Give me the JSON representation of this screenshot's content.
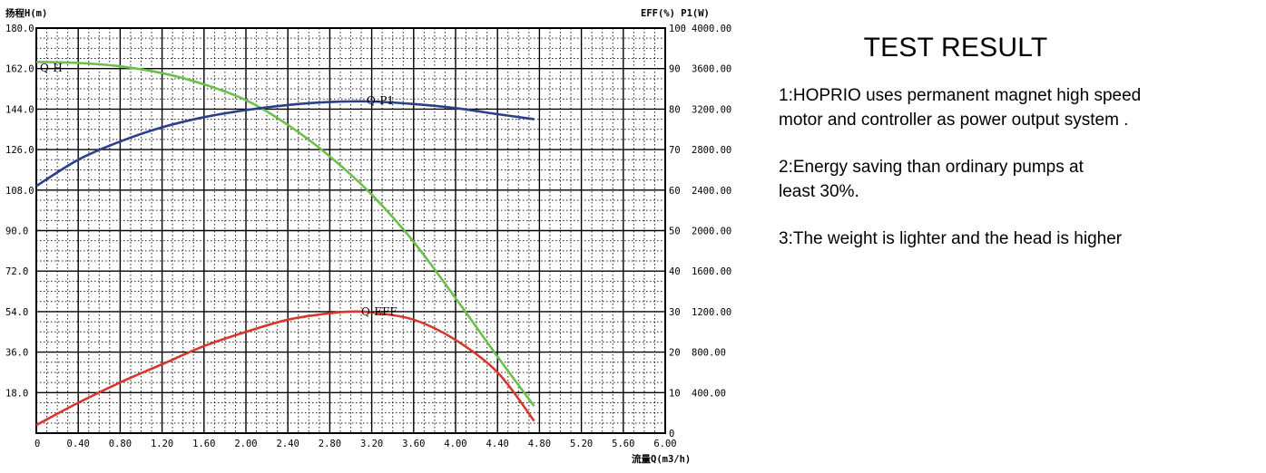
{
  "chart_data": {
    "type": "line",
    "xlabel": "流量Q(m3/h)",
    "ylabel_left": "扬程H(m)",
    "ylabel_right": "EFF(%) P1(W)",
    "xlim": [
      0,
      6.0
    ],
    "ylim_left": [
      0,
      180
    ],
    "ylim_eff": [
      0,
      100
    ],
    "ylim_power": [
      0,
      4000
    ],
    "x_ticks": [
      "0",
      "0.40",
      "0.80",
      "1.20",
      "1.60",
      "2.00",
      "2.40",
      "2.80",
      "3.20",
      "3.60",
      "4.00",
      "4.40",
      "4.80",
      "5.20",
      "5.60",
      "6.00"
    ],
    "x_tick_values": [
      0,
      0.4,
      0.8,
      1.2,
      1.6,
      2.0,
      2.4,
      2.8,
      3.2,
      3.6,
      4.0,
      4.4,
      4.8,
      5.2,
      5.6,
      6.0
    ],
    "y_left_ticks": [
      "180.0",
      "162.0",
      "144.0",
      "126.0",
      "108.0",
      "90.0",
      "72.0",
      "54.0",
      "36.0",
      "18.0"
    ],
    "y_left_tick_values": [
      180,
      162,
      144,
      126,
      108,
      90,
      72,
      54,
      36,
      18
    ],
    "y_eff_ticks": [
      "100",
      "90",
      "80",
      "70",
      "60",
      "50",
      "40",
      "30",
      "20",
      "10",
      "0"
    ],
    "y_eff_tick_values": [
      100,
      90,
      80,
      70,
      60,
      50,
      40,
      30,
      20,
      10,
      0
    ],
    "y_power_ticks": [
      "4000.00",
      "3600.00",
      "3200.00",
      "2800.00",
      "2400.00",
      "2000.00",
      "1600.00",
      "1200.00",
      "800.00",
      "400.00"
    ],
    "y_power_tick_values": [
      4000,
      3600,
      3200,
      2800,
      2400,
      2000,
      1600,
      1200,
      800,
      400
    ],
    "grid": true,
    "series": [
      {
        "name": "Q-H",
        "color": "#6ac04a",
        "axis": "left",
        "x": [
          0,
          0.4,
          0.8,
          1.2,
          1.6,
          2.0,
          2.4,
          2.8,
          3.2,
          3.6,
          4.0,
          4.4,
          4.75
        ],
        "y": [
          165,
          164.5,
          163,
          160,
          155,
          148,
          137,
          123,
          106,
          85,
          60,
          34,
          12
        ]
      },
      {
        "name": "Q-P1",
        "color": "#2b3f8c",
        "axis": "power",
        "x": [
          0,
          0.4,
          0.8,
          1.2,
          1.6,
          2.0,
          2.4,
          2.8,
          3.2,
          3.6,
          4.0,
          4.4,
          4.75
        ],
        "y": [
          2440,
          2700,
          2880,
          3020,
          3120,
          3190,
          3240,
          3270,
          3275,
          3250,
          3210,
          3150,
          3100
        ]
      },
      {
        "name": "Q-EFF",
        "color": "#d7372e",
        "axis": "eff",
        "x": [
          0,
          0.4,
          0.8,
          1.2,
          1.6,
          2.0,
          2.4,
          2.8,
          3.0,
          3.2,
          3.6,
          4.0,
          4.4,
          4.75
        ],
        "y": [
          2,
          7.5,
          12.5,
          17,
          21.5,
          25,
          28,
          29.6,
          30,
          29.8,
          28,
          23,
          15,
          3
        ]
      }
    ],
    "curve_labels": {
      "qh": "Q-H",
      "qp1": "Q-P1",
      "qeff": "Q-EFF"
    }
  },
  "panel": {
    "title": "TEST RESULT",
    "notes": [
      "1:HOPRIO uses permanent magnet high speed\nmotor and controller as power output system .",
      "2:Energy saving than ordinary pumps at\nleast 30%.",
      "3:The weight is lighter and the head is higher"
    ]
  }
}
